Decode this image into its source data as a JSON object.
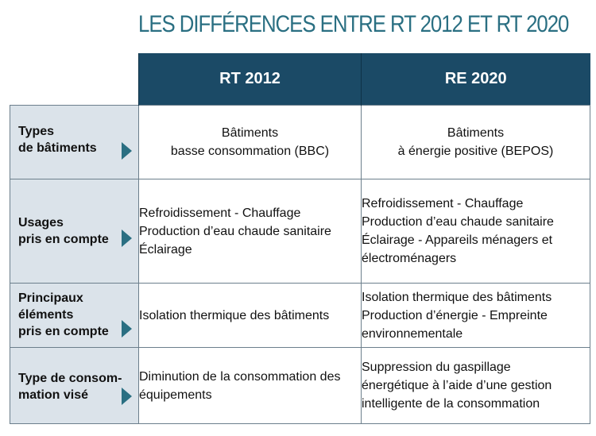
{
  "title": "LES DIFFÉRENCES ENTRE RT 2012 ET RT 2020",
  "columns": [
    "RT 2012",
    "RE 2020"
  ],
  "rows": [
    {
      "label_lines": [
        "Types",
        "de bâtiments"
      ],
      "rt2012": [
        "Bâtiments",
        "basse consommation (BBC)"
      ],
      "re2020": [
        "Bâtiments",
        "à énergie positive (BEPOS)"
      ]
    },
    {
      "label_lines": [
        "Usages",
        "pris en compte"
      ],
      "rt2012": [
        "Refroidissement - Chauffage",
        "Production d’eau chaude sanitaire",
        "Éclairage"
      ],
      "re2020": [
        "Refroidissement  - Chauffage",
        "Production d’eau chaude sanitaire",
        "Éclairage  - Appareils ménagers  et",
        "électroménagers"
      ]
    },
    {
      "label_lines": [
        "Principaux",
        "éléments",
        "pris en compte"
      ],
      "rt2012": [
        "Isolation thermique des bâtiments"
      ],
      "re2020": [
        "Isolation thermique des bâtiments",
        "Production d’énergie - Empreinte",
        "environnementale"
      ]
    },
    {
      "label_lines": [
        "Type de consom-",
        "mation visé"
      ],
      "rt2012": [
        "Diminution de la consommation des",
        "équipements"
      ],
      "re2020": [
        "Suppression du gaspillage",
        "énergétique à l’aide d’une gestion",
        "intelligente de la consommation"
      ]
    }
  ],
  "colors": {
    "header_bg": "#1b4a66",
    "title": "#2a6f82",
    "row_header_bg": "#dbe3ea",
    "arrow": "#2a6f82"
  },
  "icons": {
    "row_arrow": "triangle-right-icon"
  }
}
